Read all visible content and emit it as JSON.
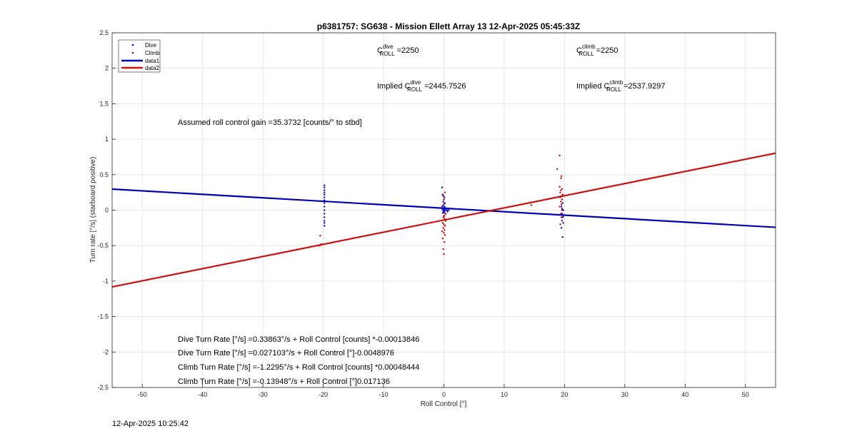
{
  "chart_data": {
    "type": "scatter",
    "title": "p6381757: SG638 - Mission Ellett Array 13 12-Apr-2025 05:45:33Z",
    "xlabel": "Roll Control [°]",
    "ylabel": "Turn rate [°/s] (starboard positive)",
    "xlim": [
      -55,
      55
    ],
    "ylim": [
      -2.5,
      2.5
    ],
    "xticks": [
      "-50",
      "-40",
      "-30",
      "-20",
      "-10",
      "0",
      "10",
      "20",
      "30",
      "40",
      "50"
    ],
    "yticks": [
      "2.5",
      "2",
      "1.5",
      "1",
      "0.5",
      "0",
      "-0.5",
      "-1",
      "-1.5",
      "-2",
      "-2.5"
    ],
    "grid": true,
    "legend_position": "top-left",
    "legend": [
      "Dive",
      "Climb",
      "data1",
      "data2"
    ],
    "colors": {
      "dive": "#0000cc",
      "climb": "#cc0000",
      "data1": "#0000b3",
      "data2": "#cc1010"
    },
    "series": [
      {
        "name": "Dive",
        "kind": "points",
        "points": [
          [
            -19.8,
            0.35
          ],
          [
            -19.8,
            0.32
          ],
          [
            -19.8,
            0.28
          ],
          [
            -19.8,
            0.25
          ],
          [
            -19.8,
            0.22
          ],
          [
            -19.8,
            0.18
          ],
          [
            -19.8,
            0.14
          ],
          [
            -19.8,
            0.1
          ],
          [
            -19.8,
            0.05
          ],
          [
            -19.8,
            0.0
          ],
          [
            -19.8,
            -0.05
          ],
          [
            -19.8,
            -0.1
          ],
          [
            -19.8,
            -0.15
          ],
          [
            -19.8,
            -0.18
          ],
          [
            -19.8,
            -0.22
          ],
          [
            -0.3,
            0.32
          ],
          [
            -0.2,
            0.22
          ],
          [
            0.1,
            0.18
          ],
          [
            -0.1,
            0.12
          ],
          [
            0.2,
            0.1
          ],
          [
            0.0,
            0.08
          ],
          [
            -0.2,
            0.06
          ],
          [
            0.1,
            0.04
          ],
          [
            0.3,
            0.03
          ],
          [
            -0.3,
            0.02
          ],
          [
            0.0,
            0.01
          ],
          [
            0.2,
            0.0
          ],
          [
            -0.1,
            -0.01
          ],
          [
            0.1,
            -0.02
          ],
          [
            0.0,
            -0.03
          ],
          [
            -0.2,
            -0.04
          ],
          [
            0.3,
            -0.05
          ],
          [
            0.1,
            0.05
          ],
          [
            -0.1,
            0.0
          ],
          [
            0.4,
            0.02
          ],
          [
            0.5,
            0.0
          ],
          [
            0.6,
            -0.02
          ],
          [
            0.8,
            0.0
          ],
          [
            -0.5,
            0.03
          ],
          [
            0.0,
            0.15
          ],
          [
            0.1,
            -0.08
          ],
          [
            -0.1,
            0.2
          ],
          [
            19.6,
            0.15
          ],
          [
            19.7,
            0.1
          ],
          [
            19.5,
            0.05
          ],
          [
            19.8,
            0.0
          ],
          [
            19.6,
            -0.05
          ],
          [
            19.7,
            -0.1
          ],
          [
            19.6,
            -0.15
          ],
          [
            19.8,
            -0.18
          ],
          [
            19.5,
            -0.25
          ],
          [
            19.7,
            -0.38
          ],
          [
            19.6,
            0.02
          ],
          [
            19.8,
            -0.08
          ]
        ]
      },
      {
        "name": "Climb",
        "kind": "points",
        "points": [
          [
            -20.5,
            -0.36
          ],
          [
            -20.3,
            -0.48
          ],
          [
            -20.6,
            -0.5
          ],
          [
            0.0,
            -0.62
          ],
          [
            -0.1,
            -0.55
          ],
          [
            0.1,
            -0.45
          ],
          [
            -0.2,
            -0.4
          ],
          [
            0.2,
            -0.35
          ],
          [
            0.0,
            -0.32
          ],
          [
            -0.3,
            -0.3
          ],
          [
            0.1,
            -0.28
          ],
          [
            -0.1,
            -0.25
          ],
          [
            0.2,
            -0.22
          ],
          [
            0.0,
            -0.2
          ],
          [
            -0.2,
            -0.18
          ],
          [
            0.3,
            -0.15
          ],
          [
            0.1,
            -0.12
          ],
          [
            -0.1,
            -0.1
          ],
          [
            0.0,
            -0.08
          ],
          [
            0.2,
            -0.05
          ],
          [
            -0.3,
            0.05
          ],
          [
            0.1,
            0.1
          ],
          [
            0.0,
            0.15
          ],
          [
            -0.1,
            0.2
          ],
          [
            0.2,
            0.25
          ],
          [
            14.5,
            0.07
          ],
          [
            19.2,
            0.77
          ],
          [
            18.8,
            0.58
          ],
          [
            19.5,
            0.48
          ],
          [
            19.4,
            0.45
          ],
          [
            19.2,
            0.33
          ],
          [
            19.6,
            0.3
          ],
          [
            19.4,
            0.28
          ],
          [
            19.3,
            0.25
          ],
          [
            19.7,
            0.22
          ],
          [
            19.5,
            0.2
          ],
          [
            19.3,
            0.18
          ],
          [
            19.6,
            0.15
          ],
          [
            19.4,
            0.12
          ],
          [
            19.5,
            0.08
          ],
          [
            19.2,
            0.05
          ],
          [
            19.6,
            0.0
          ],
          [
            19.4,
            -0.05
          ],
          [
            19.5,
            -0.1
          ],
          [
            19.3,
            -0.2
          ]
        ]
      },
      {
        "name": "data1",
        "kind": "line",
        "slope": -0.0048976,
        "intercept": 0.027103
      },
      {
        "name": "data2",
        "kind": "line",
        "slope": 0.017136,
        "intercept": -0.13948
      }
    ]
  },
  "annotations": {
    "c_roll_dive": {
      "prefix": "C",
      "sup": "dive",
      "sub": "ROLL",
      "value": " =2250"
    },
    "c_roll_climb": {
      "prefix": "C",
      "sup": "climb",
      "sub": "ROLL",
      "value": " =2250"
    },
    "implied_dive": {
      "prefix": "Implied C",
      "sup": "dive",
      "sub": "ROLL",
      "value": " =2445.7526"
    },
    "implied_climb": {
      "prefix": "Implied C",
      "sup": "climb",
      "sub": "ROLL",
      "value": " =2537.9297"
    },
    "gain": "Assumed roll control gain =35.3732 [counts/° to stbd]",
    "fits": [
      "Dive Turn Rate [°/s] =0.33863°/s + Roll Control [counts] *-0.00013846",
      "Dive Turn Rate [°/s] =0.027103°/s + Roll Control [°]-0.0048976",
      "Climb Turn Rate [°/s] =-1.2295°/s + Roll Control [counts] *0.00048444",
      "Climb Turn Rate [°/s] =-0.13948°/s + Roll Control [°]0.017136"
    ]
  },
  "timestamp": "12-Apr-2025 10:25:42"
}
